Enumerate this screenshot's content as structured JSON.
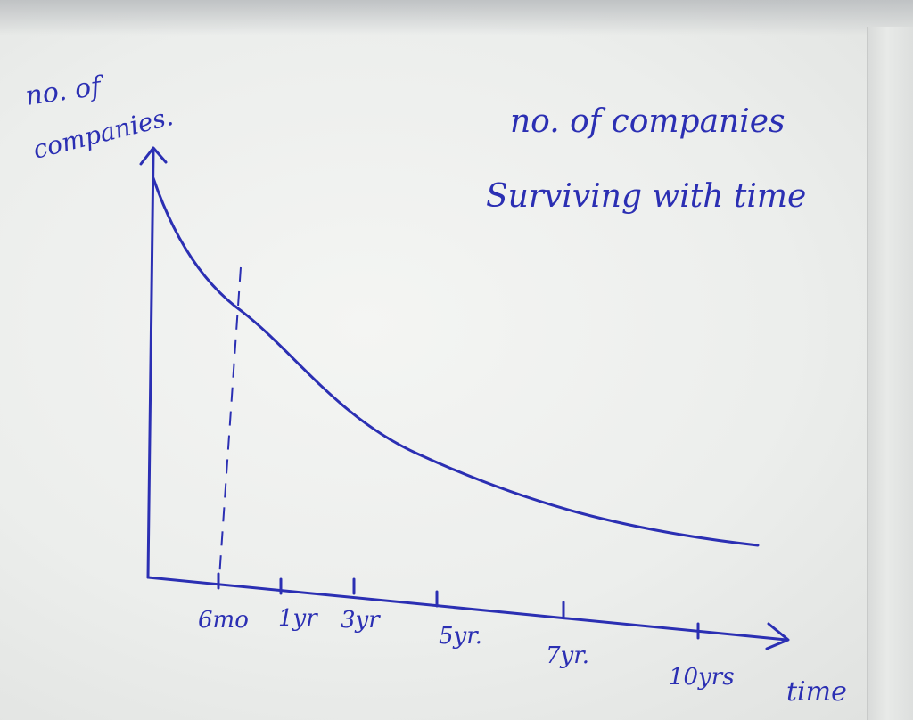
{
  "chart_data": {
    "type": "line",
    "title": [
      "no. of companies",
      "Surviving with time"
    ],
    "ylabel": [
      "no. of",
      "companies."
    ],
    "xlabel": "time",
    "categories": [
      "6mo",
      "1yr",
      "3yr",
      "5yr.",
      "7yr.",
      "10yrs"
    ],
    "series": [
      {
        "values": [
          0.6,
          0.44,
          0.32,
          0.22,
          0.13,
          0.05
        ]
      }
    ],
    "annotations": [
      "dashed vertical marker at 6mo"
    ],
    "grid": false,
    "legend": "none",
    "ink_color": "#2b2fb3"
  }
}
